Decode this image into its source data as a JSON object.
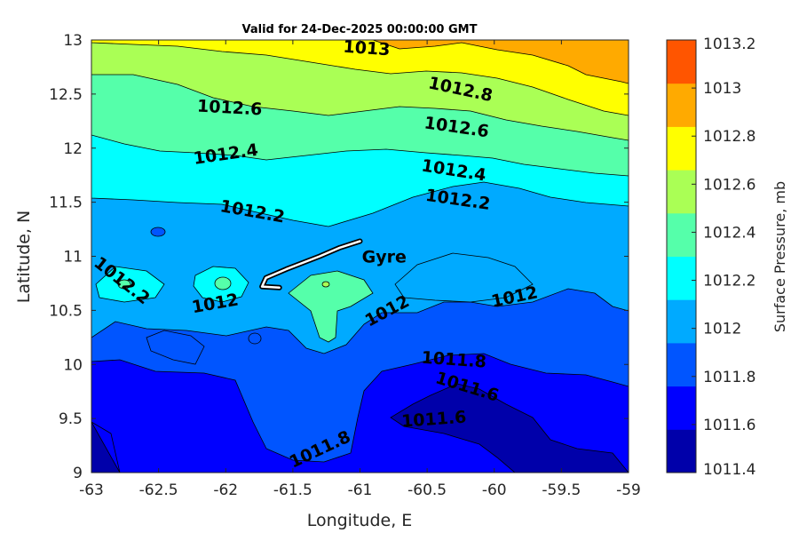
{
  "chart_data": {
    "type": "contour",
    "title": "Valid for 24-Dec-2025 00:00:00 GMT",
    "xlabel": "Longitude, E",
    "ylabel": "Latitude, N",
    "xlim": [
      -63,
      -59
    ],
    "ylim": [
      9,
      13
    ],
    "x_ticks": [
      "-63",
      "-62.5",
      "-62",
      "-61.5",
      "-61",
      "-60.5",
      "-60",
      "-59.5",
      "-59"
    ],
    "x_tick_values": [
      -63,
      -62.5,
      -62,
      -61.5,
      -61,
      -60.5,
      -60,
      -59.5,
      -59
    ],
    "y_ticks": [
      "9",
      "9.5",
      "10",
      "10.5",
      "11",
      "11.5",
      "12",
      "12.5",
      "13"
    ],
    "y_tick_values": [
      9,
      9.5,
      10,
      10.5,
      11,
      11.5,
      12,
      12.5,
      13
    ],
    "colorbar": {
      "label": "Surface Pressure, mb",
      "ticks": [
        "1011.4",
        "1011.6",
        "1011.8",
        "1012",
        "1012.2",
        "1012.4",
        "1012.6",
        "1012.8",
        "1013",
        "1013.2"
      ],
      "levels": [
        1011.4,
        1011.6,
        1011.8,
        1012,
        1012.2,
        1012.4,
        1012.6,
        1012.8,
        1013,
        1013.2
      ],
      "colors": [
        "#0000aa",
        "#0000ff",
        "#0055ff",
        "#00aaff",
        "#00ffff",
        "#55ffaa",
        "#aaff55",
        "#ffff00",
        "#ffaa00",
        "#ff5500"
      ]
    },
    "contour_labels": [
      {
        "text": "1013",
        "lon": -60.95,
        "lat": 12.93
      },
      {
        "text": "1012.8",
        "lon": -60.25,
        "lat": 12.55
      },
      {
        "text": "1012.6",
        "lon": -61.97,
        "lat": 12.38
      },
      {
        "text": "1012.6",
        "lon": -60.28,
        "lat": 12.2
      },
      {
        "text": "1012.4",
        "lon": -62.0,
        "lat": 11.95
      },
      {
        "text": "1012.4",
        "lon": -60.3,
        "lat": 11.8
      },
      {
        "text": "1012.2",
        "lon": -61.8,
        "lat": 11.42
      },
      {
        "text": "1012.2",
        "lon": -60.27,
        "lat": 11.53
      },
      {
        "text": "1012.2",
        "lon": -62.77,
        "lat": 10.78
      },
      {
        "text": "1012",
        "lon": -62.08,
        "lat": 10.57
      },
      {
        "text": "1012",
        "lon": -60.8,
        "lat": 10.5
      },
      {
        "text": "1012",
        "lon": -59.85,
        "lat": 10.63
      },
      {
        "text": "1011.8",
        "lon": -60.3,
        "lat": 10.05
      },
      {
        "text": "1011.8",
        "lon": -61.3,
        "lat": 9.22
      },
      {
        "text": "1011.6",
        "lon": -60.2,
        "lat": 9.8
      },
      {
        "text": "1011.6",
        "lon": -60.45,
        "lat": 9.5
      }
    ],
    "annotation": {
      "text": "Gyre",
      "lon": -60.82,
      "lat": 11.0
    },
    "track_points": [
      {
        "lon": -61.0,
        "lat": 11.14
      },
      {
        "lon": -61.15,
        "lat": 11.08
      },
      {
        "lon": -61.3,
        "lat": 11.0
      },
      {
        "lon": -61.55,
        "lat": 10.88
      },
      {
        "lon": -61.7,
        "lat": 10.8
      },
      {
        "lon": -61.73,
        "lat": 10.72
      },
      {
        "lon": -61.6,
        "lat": 10.71
      }
    ]
  }
}
